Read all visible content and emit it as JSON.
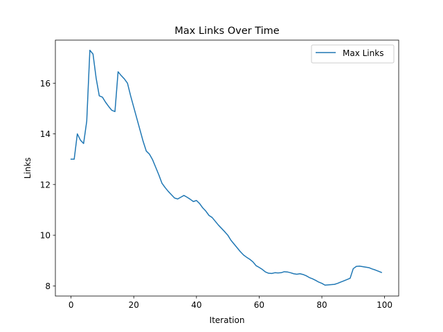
{
  "chart_data": {
    "type": "line",
    "title": "Max Links Over Time",
    "xlabel": "Iteration",
    "ylabel": "Links",
    "xlim": [
      -5,
      104.5
    ],
    "ylim": [
      7.6,
      17.7
    ],
    "xticks": [
      0,
      20,
      40,
      60,
      80,
      100
    ],
    "yticks": [
      8,
      10,
      12,
      14,
      16
    ],
    "xtick_labels": [
      "0",
      "20",
      "40",
      "60",
      "80",
      "100"
    ],
    "ytick_labels": [
      "8",
      "10",
      "12",
      "14",
      "16"
    ],
    "grid": false,
    "legend_position": "top-right",
    "series": [
      {
        "name": "Max Links",
        "color": "#1f77b4",
        "x": [
          0,
          1,
          2,
          3,
          4,
          5,
          6,
          7,
          8,
          9,
          10,
          11,
          12,
          13,
          14,
          15,
          16,
          17,
          18,
          19,
          20,
          21,
          22,
          23,
          24,
          25,
          26,
          27,
          28,
          29,
          30,
          31,
          32,
          33,
          34,
          35,
          36,
          37,
          38,
          39,
          40,
          41,
          42,
          43,
          44,
          45,
          46,
          47,
          48,
          49,
          50,
          51,
          52,
          53,
          54,
          55,
          56,
          57,
          58,
          59,
          60,
          61,
          62,
          63,
          64,
          65,
          66,
          67,
          68,
          69,
          70,
          71,
          72,
          73,
          74,
          75,
          76,
          77,
          78,
          79,
          80,
          81,
          82,
          83,
          84,
          85,
          86,
          87,
          88,
          89,
          90,
          91,
          92,
          93,
          94,
          95,
          96,
          97,
          98,
          99
        ],
        "y": [
          13.0,
          13.0,
          14.0,
          13.75,
          13.62,
          14.5,
          17.3,
          17.15,
          16.2,
          15.5,
          15.45,
          15.25,
          15.08,
          14.93,
          14.88,
          16.45,
          16.3,
          16.17,
          16.0,
          15.5,
          15.05,
          14.6,
          14.15,
          13.7,
          13.32,
          13.2,
          12.98,
          12.68,
          12.38,
          12.05,
          11.88,
          11.73,
          11.6,
          11.47,
          11.43,
          11.5,
          11.57,
          11.5,
          11.42,
          11.33,
          11.37,
          11.25,
          11.08,
          10.95,
          10.78,
          10.7,
          10.55,
          10.4,
          10.27,
          10.14,
          10.0,
          9.8,
          9.65,
          9.5,
          9.35,
          9.22,
          9.13,
          9.05,
          8.95,
          8.8,
          8.73,
          8.65,
          8.55,
          8.5,
          8.49,
          8.52,
          8.51,
          8.52,
          8.56,
          8.55,
          8.52,
          8.48,
          8.46,
          8.48,
          8.45,
          8.4,
          8.33,
          8.28,
          8.22,
          8.15,
          8.1,
          8.03,
          8.04,
          8.05,
          8.06,
          8.1,
          8.15,
          8.2,
          8.25,
          8.3,
          8.68,
          8.77,
          8.78,
          8.76,
          8.74,
          8.72,
          8.67,
          8.63,
          8.58,
          8.53
        ]
      }
    ]
  }
}
